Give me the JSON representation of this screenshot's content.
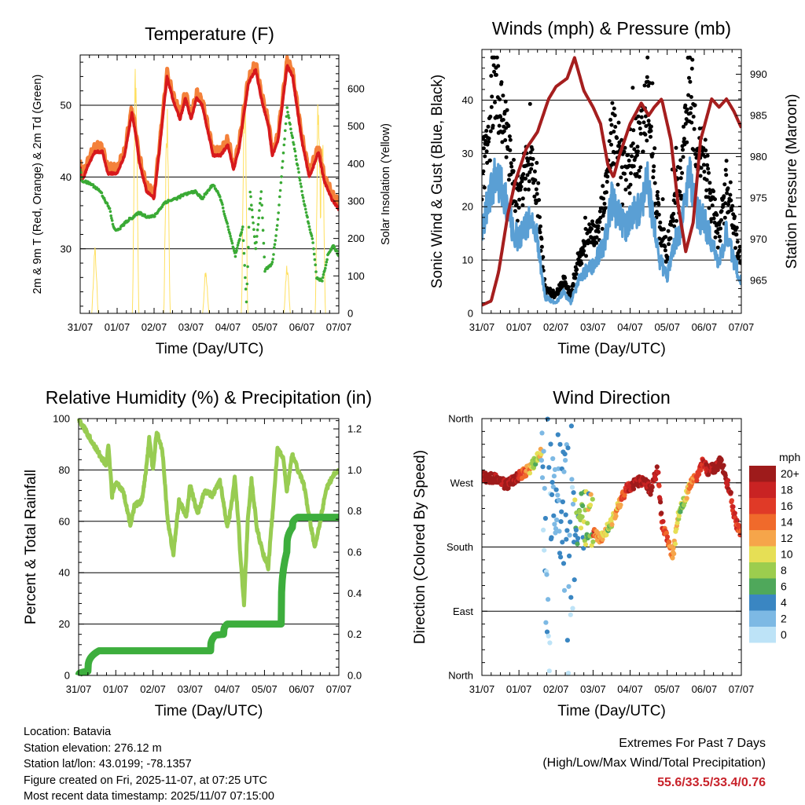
{
  "days": [
    "31/07",
    "01/07",
    "02/07",
    "03/07",
    "04/07",
    "05/07",
    "06/07",
    "07/07"
  ],
  "colors": {
    "t2m": "#d7191c",
    "t9m": "#f4813a",
    "td": "#3aaa35",
    "solar": "#ffe060",
    "gust": "#000000",
    "wind": "#5a9fd4",
    "pressure": "#a51e1e",
    "rh": "#98cc52",
    "rain": "#3dae3d",
    "extremes": "#c8222a"
  },
  "temperature": {
    "title": "Temperature (F)",
    "xlabel": "Time (Day/UTC)",
    "ylabel": "2m & 9m T (Red, Orange) & 2m Td (Green)",
    "y2label": "Solar Insolation (Yellow)",
    "ylim": [
      21,
      57
    ],
    "yticks": [
      30,
      40,
      50
    ],
    "y2lim": [
      0,
      690
    ],
    "y2ticks": [
      0,
      100,
      200,
      300,
      400,
      500,
      600
    ],
    "t2m_anchors": [
      [
        0,
        41.5
      ],
      [
        0.03,
        39.5
      ],
      [
        0.1,
        40
      ],
      [
        0.2,
        41.5
      ],
      [
        0.4,
        43.5
      ],
      [
        0.6,
        43.5
      ],
      [
        0.75,
        40.5
      ],
      [
        1,
        40.5
      ],
      [
        1.2,
        43
      ],
      [
        1.4,
        49
      ],
      [
        1.5,
        46
      ],
      [
        1.6,
        42
      ],
      [
        1.8,
        38
      ],
      [
        2,
        37
      ],
      [
        2.15,
        44
      ],
      [
        2.35,
        54
      ],
      [
        2.5,
        51
      ],
      [
        2.7,
        48
      ],
      [
        2.85,
        51
      ],
      [
        3,
        48
      ],
      [
        3.15,
        51
      ],
      [
        3.3,
        50
      ],
      [
        3.6,
        43
      ],
      [
        3.8,
        43
      ],
      [
        4,
        44.5
      ],
      [
        4.15,
        41
      ],
      [
        4.3,
        44
      ],
      [
        4.55,
        53
      ],
      [
        4.75,
        55
      ],
      [
        4.9,
        51
      ],
      [
        5.1,
        47
      ],
      [
        5.2,
        43
      ],
      [
        5.35,
        45
      ],
      [
        5.6,
        55.5
      ],
      [
        5.75,
        54
      ],
      [
        6,
        45
      ],
      [
        6.2,
        40
      ],
      [
        6.35,
        42
      ],
      [
        6.45,
        43.5
      ],
      [
        6.6,
        39.5
      ],
      [
        6.8,
        37
      ],
      [
        7,
        35.5
      ]
    ],
    "td_anchors": [
      [
        0,
        41
      ],
      [
        0.05,
        39.5
      ],
      [
        0.3,
        39
      ],
      [
        0.55,
        38
      ],
      [
        0.8,
        35.5
      ],
      [
        0.9,
        33
      ],
      [
        1,
        32.5
      ],
      [
        1.3,
        34
      ],
      [
        1.6,
        35
      ],
      [
        1.8,
        34.5
      ],
      [
        2,
        34.5
      ],
      [
        2.3,
        36.5
      ],
      [
        2.6,
        37
      ],
      [
        2.8,
        37.5
      ],
      [
        3.1,
        38
      ],
      [
        3.3,
        37
      ],
      [
        3.6,
        39
      ],
      [
        3.8,
        37
      ],
      [
        4,
        33
      ],
      [
        4.2,
        29
      ],
      [
        4.4,
        33
      ],
      [
        4.5,
        22.5
      ],
      [
        4.6,
        38
      ],
      [
        4.75,
        30
      ],
      [
        4.9,
        38
      ],
      [
        5,
        27
      ],
      [
        5.2,
        28
      ],
      [
        5.35,
        34
      ],
      [
        5.6,
        49.5
      ],
      [
        5.8,
        44
      ],
      [
        6,
        38
      ],
      [
        6.2,
        33
      ],
      [
        6.3,
        31
      ],
      [
        6.4,
        26
      ],
      [
        6.55,
        25.5
      ],
      [
        6.7,
        29
      ],
      [
        6.85,
        30.5
      ],
      [
        7,
        29
      ]
    ],
    "solar_peaks": [
      [
        0.4,
        180
      ],
      [
        1.5,
        680
      ],
      [
        2.35,
        560
      ],
      [
        3.4,
        120
      ],
      [
        4.45,
        620
      ],
      [
        5.6,
        140
      ],
      [
        6.45,
        620
      ],
      [
        6.55,
        520
      ]
    ]
  },
  "winds": {
    "title": "Winds (mph) & Pressure (mb)",
    "xlabel": "Time (Day/UTC)",
    "ylabel": "Sonic Wind & Gust (Blue, Black)",
    "y2label": "Station Pressure (Maroon)",
    "ylim": [
      0,
      49.5
    ],
    "yticks": [
      0,
      10,
      20,
      30,
      40
    ],
    "y2lim": [
      961,
      993
    ],
    "y2ticks": [
      965,
      970,
      975,
      980,
      985,
      990
    ],
    "wind_anchors": [
      [
        0,
        16
      ],
      [
        0.2,
        22
      ],
      [
        0.35,
        26
      ],
      [
        0.5,
        24
      ],
      [
        0.7,
        20
      ],
      [
        0.85,
        15
      ],
      [
        1,
        14
      ],
      [
        1.3,
        18
      ],
      [
        1.5,
        14
      ],
      [
        1.7,
        3
      ],
      [
        2,
        2
      ],
      [
        2.2,
        4
      ],
      [
        2.4,
        2
      ],
      [
        2.6,
        6
      ],
      [
        2.8,
        8
      ],
      [
        3,
        9
      ],
      [
        3.3,
        13
      ],
      [
        3.5,
        21
      ],
      [
        3.7,
        18
      ],
      [
        3.9,
        16
      ],
      [
        4,
        18
      ],
      [
        4.3,
        20
      ],
      [
        4.45,
        26
      ],
      [
        4.6,
        18
      ],
      [
        4.8,
        10
      ],
      [
        5,
        7
      ],
      [
        5.2,
        13
      ],
      [
        5.4,
        17
      ],
      [
        5.6,
        26
      ],
      [
        5.8,
        19
      ],
      [
        6,
        17
      ],
      [
        6.2,
        14
      ],
      [
        6.4,
        9
      ],
      [
        6.6,
        16
      ],
      [
        6.8,
        10
      ],
      [
        7,
        6
      ]
    ],
    "pressure_anchors": [
      [
        0,
        962
      ],
      [
        0.25,
        962.5
      ],
      [
        0.45,
        966
      ],
      [
        0.7,
        973
      ],
      [
        0.9,
        977
      ],
      [
        1.2,
        981
      ],
      [
        1.5,
        983
      ],
      [
        1.8,
        987
      ],
      [
        2.0,
        988.5
      ],
      [
        2.3,
        989.5
      ],
      [
        2.5,
        992
      ],
      [
        2.75,
        988
      ],
      [
        3.0,
        986
      ],
      [
        3.2,
        984
      ],
      [
        3.4,
        979
      ],
      [
        3.55,
        977.5
      ],
      [
        3.7,
        980
      ],
      [
        4.0,
        984
      ],
      [
        4.3,
        986.5
      ],
      [
        4.5,
        985
      ],
      [
        4.65,
        986
      ],
      [
        4.85,
        987
      ],
      [
        5.1,
        982
      ],
      [
        5.3,
        974
      ],
      [
        5.5,
        968.5
      ],
      [
        5.7,
        972
      ],
      [
        5.9,
        982
      ],
      [
        6.2,
        987
      ],
      [
        6.4,
        986
      ],
      [
        6.6,
        987
      ],
      [
        6.8,
        985.5
      ],
      [
        7.0,
        983.5
      ]
    ]
  },
  "rh": {
    "title": "Relative Humidity (%) & Precipitation (in)",
    "xlabel": "Time (Day/UTC)",
    "ylabel": "Percent & Total Rainfall",
    "ylim": [
      0,
      100
    ],
    "yticks": [
      0,
      20,
      40,
      60,
      80,
      100
    ],
    "y2lim": [
      0,
      1.25
    ],
    "y2ticks": [
      0.0,
      0.2,
      0.4,
      0.6,
      0.8,
      1.0,
      1.2
    ],
    "rh_anchors": [
      [
        0,
        100
      ],
      [
        0.2,
        95
      ],
      [
        0.4,
        90
      ],
      [
        0.6,
        85
      ],
      [
        0.75,
        82
      ],
      [
        0.8,
        90
      ],
      [
        0.9,
        70
      ],
      [
        1,
        75
      ],
      [
        1.2,
        72
      ],
      [
        1.4,
        58
      ],
      [
        1.5,
        66
      ],
      [
        1.7,
        68
      ],
      [
        1.8,
        78
      ],
      [
        1.9,
        92
      ],
      [
        2,
        80
      ],
      [
        2.1,
        95
      ],
      [
        2.25,
        88
      ],
      [
        2.4,
        60
      ],
      [
        2.55,
        47
      ],
      [
        2.7,
        68
      ],
      [
        2.9,
        62
      ],
      [
        3,
        74
      ],
      [
        3.2,
        63
      ],
      [
        3.4,
        72
      ],
      [
        3.6,
        70
      ],
      [
        3.8,
        76
      ],
      [
        4,
        58
      ],
      [
        4.1,
        65
      ],
      [
        4.2,
        77
      ],
      [
        4.3,
        60
      ],
      [
        4.35,
        47
      ],
      [
        4.45,
        28
      ],
      [
        4.55,
        60
      ],
      [
        4.65,
        76
      ],
      [
        4.8,
        57
      ],
      [
        4.95,
        48
      ],
      [
        5.1,
        42
      ],
      [
        5.2,
        60
      ],
      [
        5.35,
        88
      ],
      [
        5.5,
        85
      ],
      [
        5.6,
        72
      ],
      [
        5.75,
        86
      ],
      [
        5.9,
        80
      ],
      [
        6.05,
        75
      ],
      [
        6.2,
        62
      ],
      [
        6.35,
        50
      ],
      [
        6.5,
        60
      ],
      [
        6.65,
        72
      ],
      [
        6.85,
        78
      ],
      [
        7,
        80
      ]
    ],
    "rain_steps": [
      [
        0,
        0
      ],
      [
        0.25,
        0.02
      ],
      [
        0.55,
        0.12
      ],
      [
        3.55,
        0.12
      ],
      [
        3.65,
        0.19
      ],
      [
        3.9,
        0.2
      ],
      [
        4.0,
        0.25
      ],
      [
        5.45,
        0.25
      ],
      [
        5.6,
        0.6
      ],
      [
        5.75,
        0.72
      ],
      [
        5.9,
        0.77
      ],
      [
        7,
        0.77
      ]
    ]
  },
  "wind_dir": {
    "title": "Wind Direction",
    "xlabel": "Time (Day/UTC)",
    "ylabel": "Direction (Colored By Speed)",
    "directions": [
      "North",
      "East",
      "South",
      "West",
      "North"
    ],
    "legend_title": "mph",
    "legend_labels": [
      "20+",
      "18",
      "16",
      "14",
      "12",
      "10",
      "8",
      "6",
      "4",
      "2",
      "0"
    ],
    "legend_colors": [
      "#9e1b1b",
      "#c92323",
      "#e03a27",
      "#f06a2b",
      "#f6a54a",
      "#e6df55",
      "#9ccd4e",
      "#4fa85b",
      "#3a86c2",
      "#7db9e4",
      "#bde3f7"
    ],
    "dir_anchors": [
      [
        0,
        278
      ],
      [
        0.3,
        277
      ],
      [
        0.5,
        270
      ],
      [
        0.7,
        268
      ],
      [
        0.9,
        275
      ],
      [
        1.1,
        283
      ],
      [
        1.3,
        290
      ],
      [
        1.5,
        305
      ],
      [
        1.6,
        315
      ],
      [
        3.0,
        200
      ],
      [
        3.2,
        190
      ],
      [
        3.5,
        215
      ],
      [
        3.8,
        250
      ],
      [
        3.9,
        265
      ],
      [
        4.0,
        263
      ],
      [
        4.2,
        272
      ],
      [
        4.4,
        273
      ],
      [
        4.55,
        258
      ],
      [
        4.7,
        283
      ],
      [
        4.75,
        290
      ],
      [
        4.85,
        215
      ],
      [
        5.0,
        195
      ],
      [
        5.15,
        165
      ],
      [
        5.3,
        225
      ],
      [
        5.5,
        250
      ],
      [
        5.6,
        265
      ],
      [
        5.8,
        280
      ],
      [
        5.95,
        300
      ],
      [
        6.1,
        286
      ],
      [
        6.3,
        292
      ],
      [
        6.45,
        300
      ],
      [
        6.55,
        283
      ],
      [
        6.7,
        255
      ],
      [
        6.85,
        215
      ],
      [
        7.0,
        200
      ]
    ]
  },
  "footer": {
    "location": "Location: Batavia",
    "elevation": "Station elevation: 276.12 m",
    "latlon": "Station lat/lon: 43.0199; -78.1357",
    "created": "Figure created on Fri, 2025-11-07, at 07:25 UTC",
    "recent": "Most recent data timestamp: 2025/11/07 07:15:00",
    "extremes_title": "Extremes For Past 7 Days",
    "extremes_sub": "(High/Low/Max Wind/Total Precipitation)",
    "extremes_values": "55.6/33.5/33.4/0.76"
  }
}
